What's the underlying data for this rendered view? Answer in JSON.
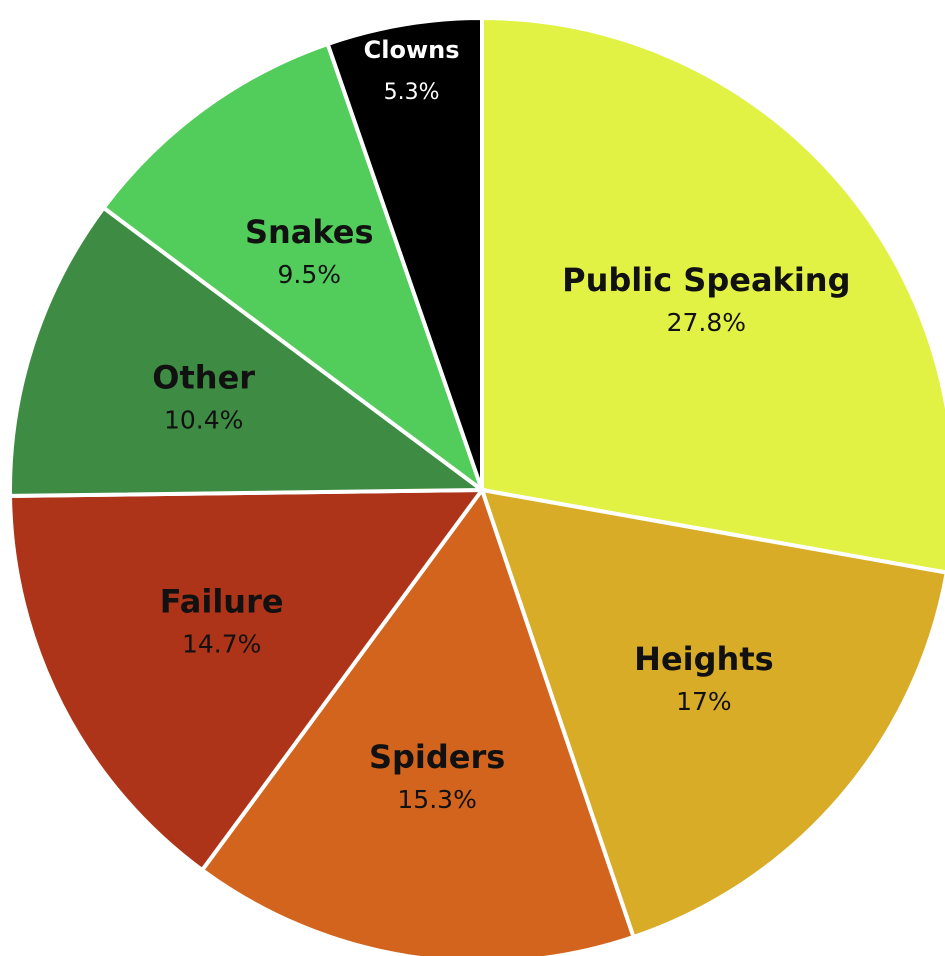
{
  "chart_data": {
    "type": "pie",
    "categories": [
      "Public Speaking",
      "Heights",
      "Spiders",
      "Failure",
      "Other",
      "Snakes",
      "Clowns"
    ],
    "values": [
      27.8,
      17,
      15.3,
      14.7,
      10.4,
      9.5,
      5.3
    ],
    "value_labels": [
      "27.8%",
      "17%",
      "15.3%",
      "14.7%",
      "10.4%",
      "9.5%",
      "5.3%"
    ],
    "colors": [
      "#e2f244",
      "#d9ac28",
      "#d2641e",
      "#ad3418",
      "#3e8c43",
      "#52cc5a",
      "#000000"
    ]
  }
}
